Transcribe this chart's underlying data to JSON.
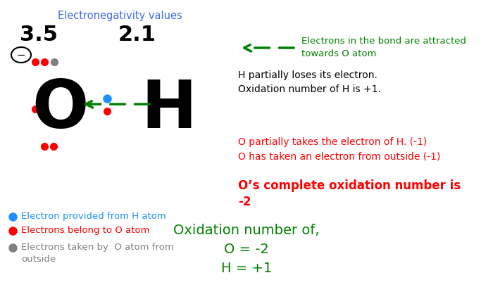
{
  "bg_color": "#ffffff",
  "green_color": "#008000",
  "red_color": "#FF0000",
  "blue_dot_color": "#1E90FF",
  "gray_color": "#808080",
  "black_color": "#000000",
  "dark_blue_color": "#4169E1",
  "title": "Electronegativity values",
  "val_35": "3.5",
  "val_21": "2.1",
  "O_label": "O",
  "H_label": "H",
  "legend_blue": "Electron provided from H atom",
  "legend_red": "Electrons belong to O atom",
  "legend_gray1": "Electrons taken by  O atom from",
  "legend_gray2": "outside",
  "arrow_text1": "Electrons in the bond are attracted",
  "arrow_text2": "towards O atom",
  "black_text1": "H partially loses its electron.",
  "black_text2": "Oxidation number of H is +1.",
  "red_text1": "O partially takes the electron of H. (-1)",
  "red_text2": "O has taken an electron from outside (-1)",
  "bold_red1": "O’s complete oxidation number is",
  "bold_red2": "-2",
  "bottom1": "Oxidation number of,",
  "bottom2": "O = -2",
  "bottom3": "H = +1"
}
